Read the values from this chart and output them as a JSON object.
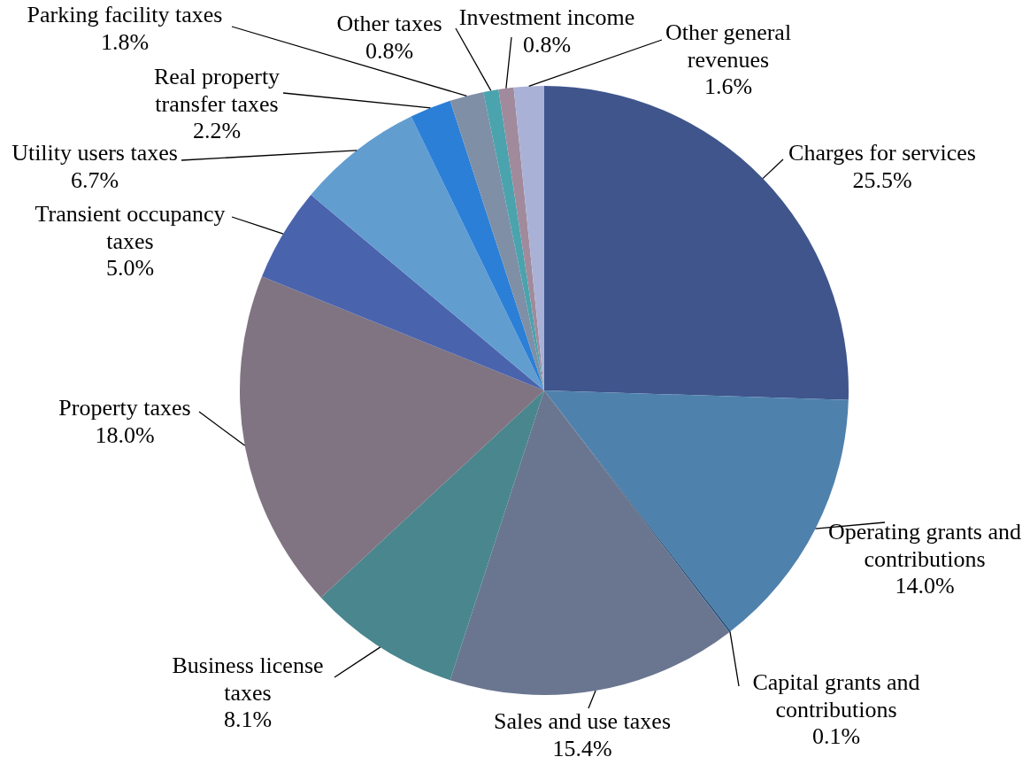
{
  "chart_data": {
    "type": "pie",
    "categories": [
      "Charges for services",
      "Operating grants and contributions",
      "Capital grants and contributions",
      "Sales and use taxes",
      "Business license taxes",
      "Property taxes",
      "Transient occupancy taxes",
      "Utility users taxes",
      "Real property transfer taxes",
      "Parking facility taxes",
      "Other taxes",
      "Investment income",
      "Other general revenues"
    ],
    "values": [
      25.5,
      14.0,
      0.1,
      15.4,
      8.1,
      18.0,
      5.0,
      6.7,
      2.2,
      1.8,
      0.8,
      0.8,
      1.6
    ],
    "value_labels": [
      "25.5%",
      "14.0%",
      "0.1%",
      "15.4%",
      "8.1%",
      "18.0%",
      "5.0%",
      "6.7%",
      "2.2%",
      "1.8%",
      "0.8%",
      "0.8%",
      "1.6%"
    ],
    "colors": [
      "#3f558c",
      "#4f81ad",
      "#2a5680",
      "#6a7690",
      "#4a868e",
      "#807482",
      "#4a63ad",
      "#629dd0",
      "#2b7fd7",
      "#7f8fa6",
      "#4aa3ad",
      "#a08a9c",
      "#a9b2d6"
    ]
  }
}
